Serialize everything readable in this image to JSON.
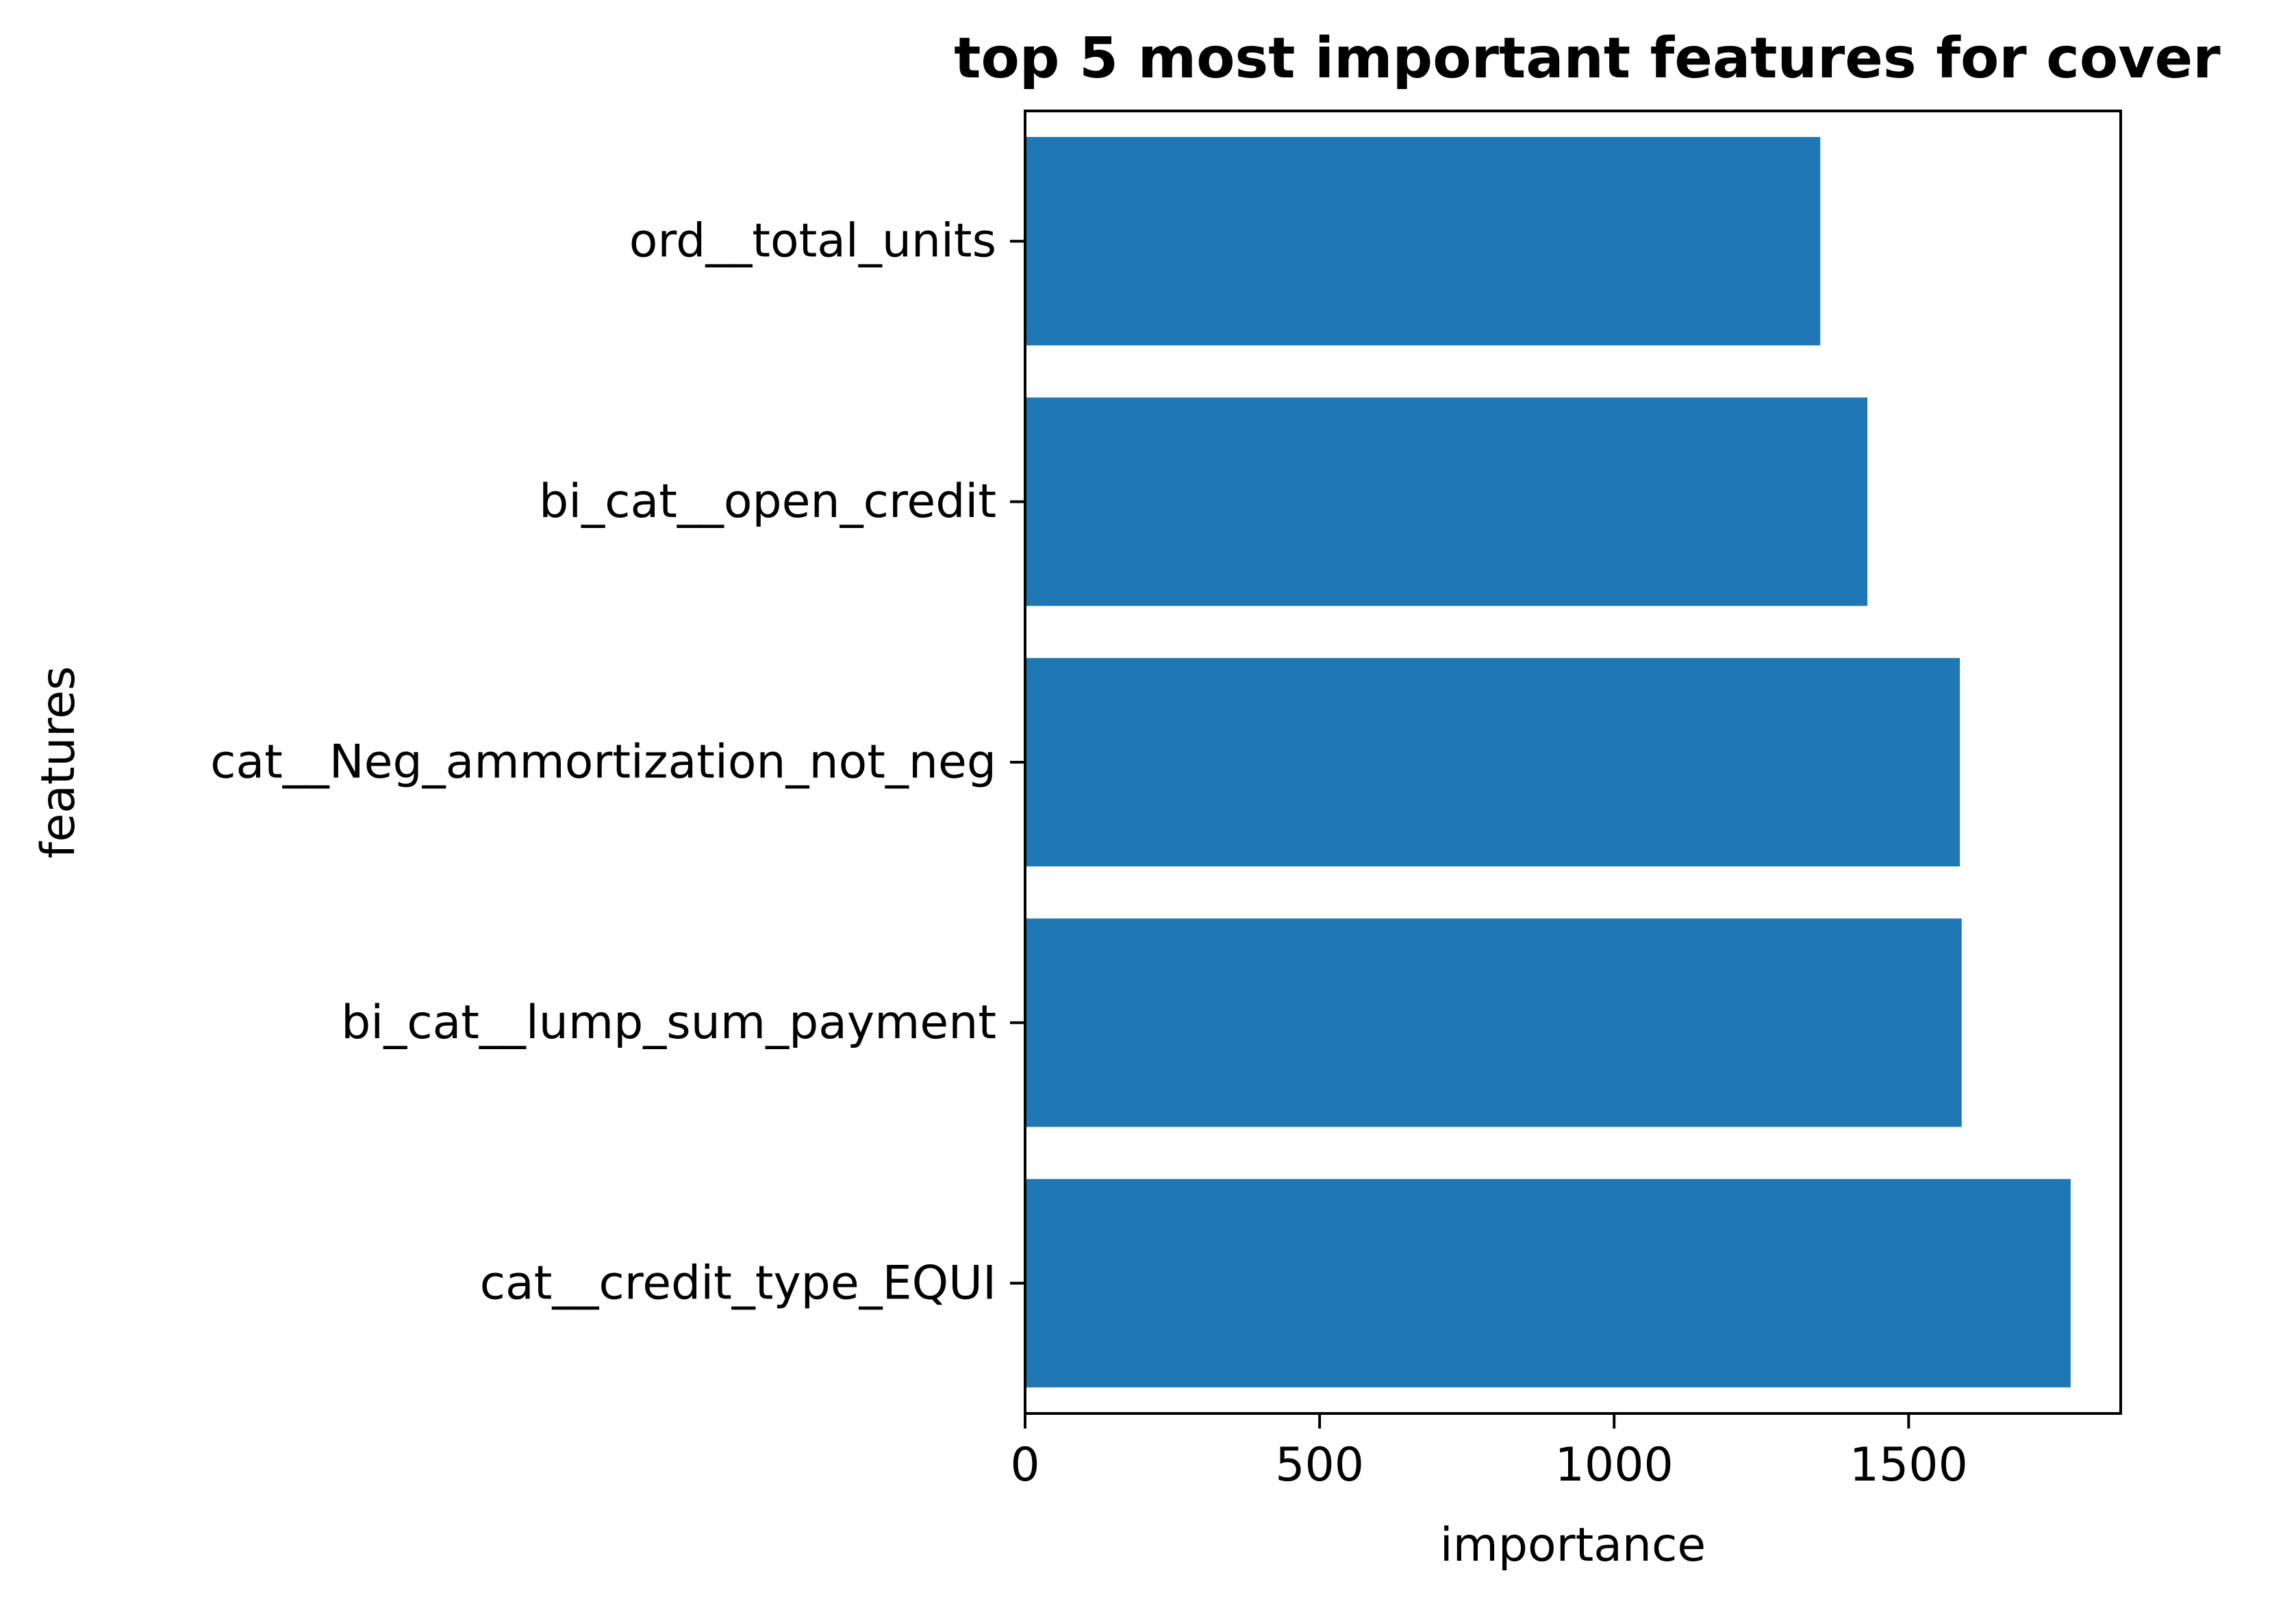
{
  "chart_data": {
    "type": "bar",
    "orientation": "horizontal",
    "title": "top 5 most important features for cover",
    "xlabel": "importance",
    "ylabel": "features",
    "categories": [
      "ord__total_units",
      "bi_cat__open_credit",
      "cat__Neg_ammortization_not_neg",
      "bi_cat__lump_sum_payment",
      "cat__credit_type_EQUI"
    ],
    "values": [
      1350,
      1430,
      1587,
      1590,
      1775
    ],
    "xlim": [
      0,
      1860
    ],
    "xticks": [
      0,
      500,
      1000,
      1500
    ],
    "grid": false,
    "legend": false,
    "bar_color": "#1f77b4"
  }
}
